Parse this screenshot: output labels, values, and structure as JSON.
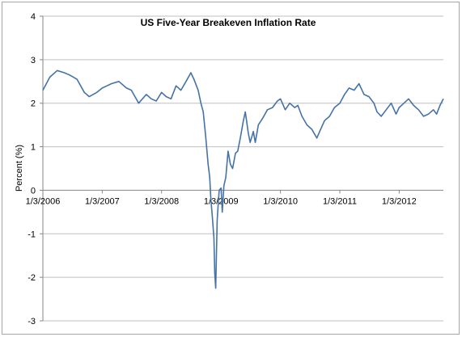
{
  "chart_data": {
    "type": "line",
    "title": "US Five-Year Breakeven Inflation Rate",
    "ylabel": "Percent (%)",
    "xlabel": "",
    "ylim": [
      -3,
      4
    ],
    "yticks": [
      -3,
      -2,
      -1,
      0,
      1,
      2,
      3,
      4
    ],
    "xlim": [
      "2006-01-03",
      "2012-10-01"
    ],
    "xtick_labels": [
      "1/3/2006",
      "1/3/2007",
      "1/3/2008",
      "1/3/2009",
      "1/3/2010",
      "1/3/2011",
      "1/3/2012"
    ],
    "xtick_dates": [
      "2006-01-03",
      "2007-01-03",
      "2008-01-03",
      "2009-01-03",
      "2010-01-03",
      "2011-01-03",
      "2012-01-03"
    ],
    "grid": "horizontal",
    "legend": "none",
    "line_color": "#4572a7",
    "series": [
      {
        "x": [
          "2006-01-03",
          "2006-02-15",
          "2006-04-01",
          "2006-05-15",
          "2006-06-15",
          "2006-08-01",
          "2006-09-15",
          "2006-10-15",
          "2006-12-01",
          "2007-01-03",
          "2007-02-01",
          "2007-03-01",
          "2007-04-15",
          "2007-06-01",
          "2007-07-01",
          "2007-08-15",
          "2007-10-01",
          "2007-11-01",
          "2007-12-01",
          "2008-01-03",
          "2008-02-01",
          "2008-03-01",
          "2008-04-01",
          "2008-05-01",
          "2008-06-01",
          "2008-07-01",
          "2008-07-20",
          "2008-08-15",
          "2008-09-01",
          "2008-09-15",
          "2008-10-01",
          "2008-10-15",
          "2008-10-25",
          "2008-11-01",
          "2008-11-10",
          "2008-11-20",
          "2008-11-25",
          "2008-12-01",
          "2008-12-10",
          "2008-12-15",
          "2008-12-22",
          "2009-01-03",
          "2009-01-10",
          "2009-01-20",
          "2009-02-01",
          "2009-02-15",
          "2009-03-01",
          "2009-03-15",
          "2009-04-01",
          "2009-04-15",
          "2009-05-01",
          "2009-05-20",
          "2009-06-01",
          "2009-06-20",
          "2009-07-01",
          "2009-07-20",
          "2009-08-01",
          "2009-08-20",
          "2009-09-15",
          "2009-10-15",
          "2009-11-15",
          "2009-12-15",
          "2010-01-03",
          "2010-01-15",
          "2010-02-01",
          "2010-03-01",
          "2010-04-01",
          "2010-04-20",
          "2010-05-15",
          "2010-06-15",
          "2010-07-15",
          "2010-08-15",
          "2010-09-01",
          "2010-10-01",
          "2010-11-01",
          "2010-12-01",
          "2011-01-03",
          "2011-02-01",
          "2011-03-01",
          "2011-04-01",
          "2011-05-01",
          "2011-06-01",
          "2011-07-01",
          "2011-08-01",
          "2011-08-20",
          "2011-09-15",
          "2011-10-15",
          "2011-11-15",
          "2011-12-15",
          "2012-01-03",
          "2012-02-01",
          "2012-03-01",
          "2012-04-01",
          "2012-05-01",
          "2012-06-01",
          "2012-07-01",
          "2012-08-01",
          "2012-08-20",
          "2012-09-10",
          "2012-10-01"
        ],
        "y": [
          2.3,
          2.6,
          2.75,
          2.7,
          2.65,
          2.55,
          2.25,
          2.15,
          2.25,
          2.35,
          2.4,
          2.45,
          2.5,
          2.35,
          2.3,
          2.0,
          2.2,
          2.1,
          2.05,
          2.25,
          2.15,
          2.1,
          2.4,
          2.3,
          2.5,
          2.7,
          2.55,
          2.3,
          2.0,
          1.8,
          1.2,
          0.6,
          0.3,
          -0.2,
          -0.6,
          -1.1,
          -1.9,
          -2.25,
          -0.7,
          -0.4,
          0.0,
          0.05,
          -0.5,
          0.1,
          0.3,
          0.9,
          0.6,
          0.5,
          0.85,
          0.9,
          1.2,
          1.6,
          1.8,
          1.3,
          1.1,
          1.35,
          1.1,
          1.5,
          1.65,
          1.85,
          1.9,
          2.05,
          2.1,
          2.0,
          1.85,
          2.0,
          1.9,
          1.95,
          1.7,
          1.5,
          1.4,
          1.2,
          1.35,
          1.6,
          1.7,
          1.9,
          2.0,
          2.2,
          2.35,
          2.3,
          2.45,
          2.2,
          2.15,
          2.0,
          1.8,
          1.7,
          1.85,
          2.0,
          1.75,
          1.9,
          2.0,
          2.1,
          1.95,
          1.85,
          1.7,
          1.75,
          1.85,
          1.75,
          1.95,
          2.1
        ]
      }
    ]
  }
}
